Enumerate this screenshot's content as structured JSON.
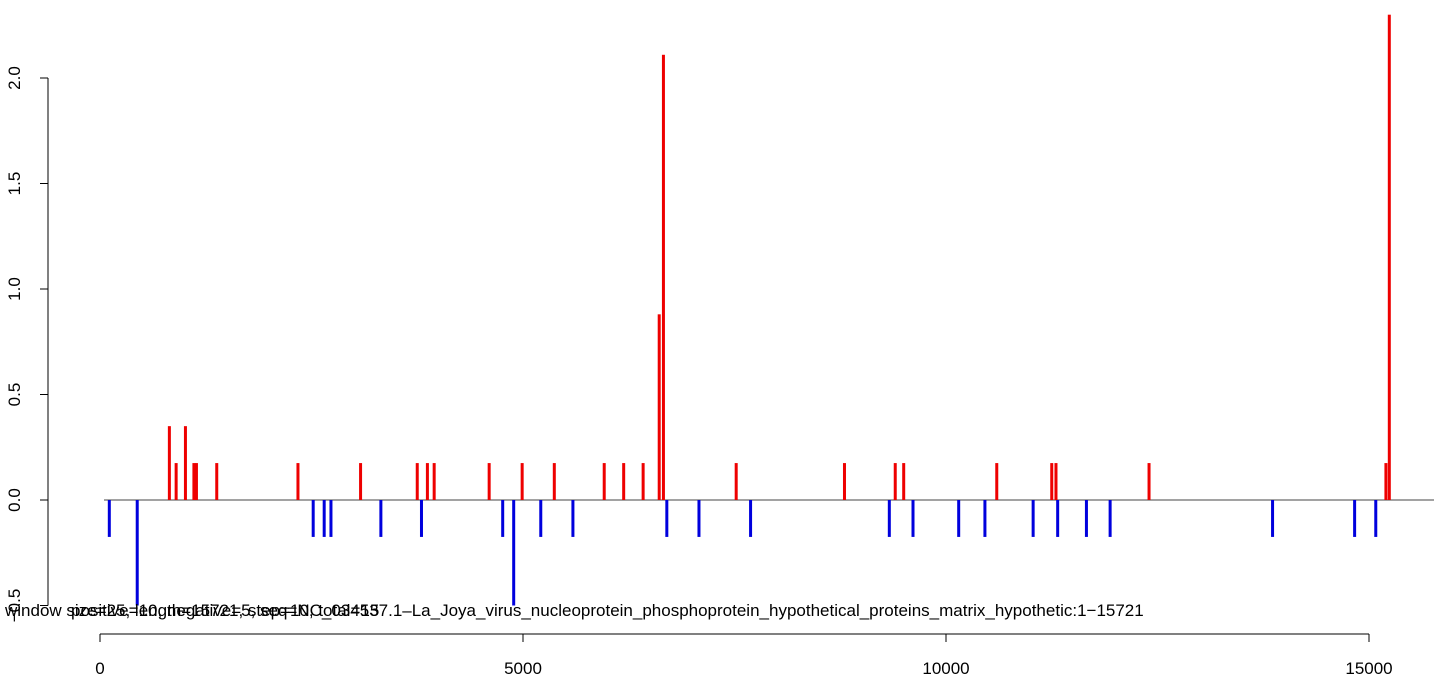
{
  "chart_data": {
    "type": "bar",
    "title": "",
    "xlabel": "",
    "ylabel": "",
    "xlim": [
      -120,
      15721
    ],
    "ylim": [
      -0.5,
      2.3
    ],
    "grid": false,
    "legend": "none",
    "colors": {
      "positive": "#ee0000",
      "negative": "#0000dd",
      "axis": "#000000"
    },
    "x_ticks": [
      {
        "value": 0,
        "label": "0"
      },
      {
        "value": 5000,
        "label": "5000"
      },
      {
        "value": 10000,
        "label": "10000"
      },
      {
        "value": 15000,
        "label": "15000"
      }
    ],
    "y_ticks": [
      {
        "value": -0.5,
        "label": "−0.5"
      },
      {
        "value": 0.0,
        "label": "0.0"
      },
      {
        "value": 0.5,
        "label": "0.5"
      },
      {
        "value": 1.0,
        "label": "1.0"
      },
      {
        "value": 1.5,
        "label": "1.5"
      },
      {
        "value": 2.0,
        "label": "2.0"
      }
    ],
    "overlay_text_1": "window size=25, length=15721, step=10, total=15",
    "overlay_text_2": "positive=10, negative=5, seq=NC_034537.1–La_Joya_virus_nucleoprotein_phosphoprotein_hypothetical_proteins_matrix_hypothetic:1−15721",
    "series": [
      {
        "name": "positive",
        "x": [
          820,
          900,
          1010,
          1110,
          1140,
          1380,
          2340,
          3080,
          3750,
          3870,
          3950,
          4600,
          4990,
          5370,
          5960,
          6190,
          6420,
          6610,
          6660,
          7520,
          8800,
          9400,
          9500,
          10600,
          11250,
          11300,
          12400,
          15200,
          15240
        ],
        "values": [
          0.35,
          0.175,
          0.35,
          0.175,
          0.175,
          0.175,
          0.175,
          0.175,
          0.175,
          0.175,
          0.175,
          0.175,
          0.175,
          0.175,
          0.175,
          0.175,
          0.175,
          0.88,
          2.11,
          0.175,
          0.175,
          0.175,
          0.175,
          0.175,
          0.175,
          0.175,
          0.175,
          0.175,
          2.3
        ]
      },
      {
        "name": "negative",
        "x": [
          110,
          440,
          2520,
          2650,
          2730,
          3320,
          3800,
          4760,
          4890,
          5210,
          5590,
          6700,
          7080,
          7690,
          9330,
          9610,
          10150,
          10460,
          11030,
          11320,
          11660,
          11940,
          13860,
          14830,
          15080
        ],
        "values": [
          -0.175,
          -0.5,
          -0.175,
          -0.175,
          -0.175,
          -0.175,
          -0.175,
          -0.175,
          -0.5,
          -0.175,
          -0.175,
          -0.175,
          -0.175,
          -0.175,
          -0.175,
          -0.175,
          -0.175,
          -0.175,
          -0.175,
          -0.175,
          -0.175,
          -0.175,
          -0.175,
          -0.175,
          -0.175
        ]
      }
    ]
  }
}
